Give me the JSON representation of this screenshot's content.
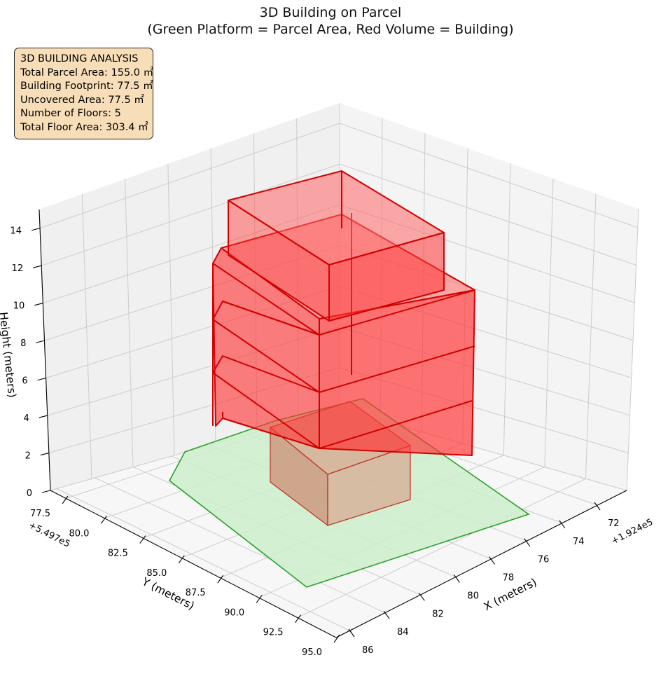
{
  "chart_data": {
    "type": "3d-surface",
    "title_line1": "3D Building on Parcel",
    "title_line2": "(Green Platform = Parcel Area, Red Volume = Building)",
    "xlabel": "X (meters)",
    "ylabel": "Y (meters)",
    "zlabel": "Height (meters)",
    "x_offset_label": "+1.924e5",
    "y_offset_label": "+5.497e5",
    "x_ticks": [
      "72",
      "74",
      "76",
      "78",
      "80",
      "82",
      "84",
      "86"
    ],
    "y_ticks": [
      "77.5",
      "80.0",
      "82.5",
      "85.0",
      "87.5",
      "90.0",
      "92.5",
      "95.0"
    ],
    "z_ticks": [
      "0",
      "2",
      "4",
      "6",
      "8",
      "10",
      "12",
      "14"
    ],
    "zlim": [
      0,
      15
    ],
    "colors": {
      "parcel_fill": "#cdeecd",
      "parcel_edge": "#2ca02c",
      "building_fill": "#ff0000",
      "building_edge": "#d40000",
      "info_box_bg": "#f7deb8"
    }
  },
  "info_box": {
    "heading": "3D BUILDING ANALYSIS",
    "lines": [
      "Total Parcel Area: 155.0 ㎡",
      "Building Footprint: 77.5 ㎡",
      "Uncovered Area: 77.5 ㎡",
      "Number of Floors: 5",
      "Total Floor Area: 303.4 ㎡"
    ]
  }
}
